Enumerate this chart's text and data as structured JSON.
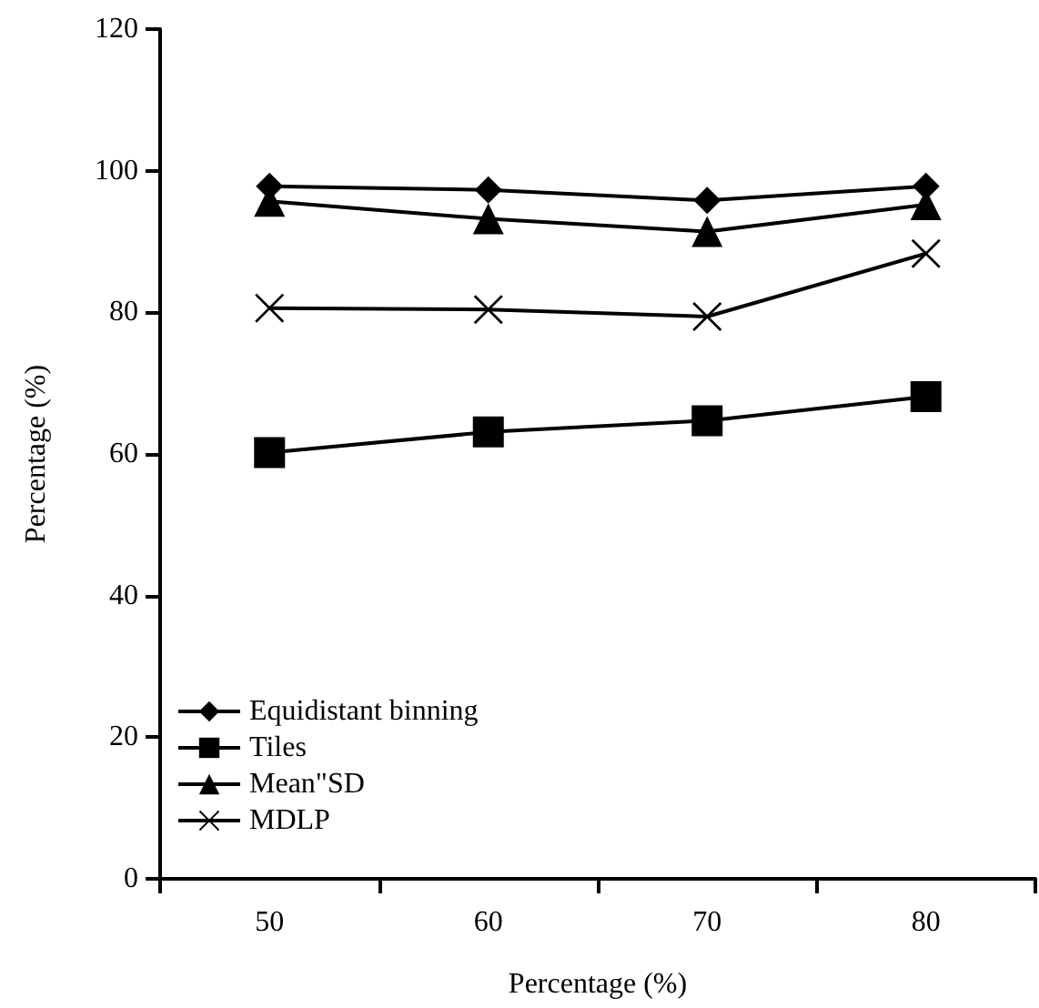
{
  "chart_data": {
    "type": "line",
    "xlabel": "Percentage (%)",
    "ylabel": "Percentage (%)",
    "categories": [
      "50",
      "60",
      "70",
      "80"
    ],
    "ylim": [
      0,
      120
    ],
    "yticks": [
      0,
      20,
      40,
      60,
      80,
      100,
      120
    ],
    "grid": false,
    "legend": "bottom left",
    "series": [
      {
        "name": "Equidistant binning",
        "color": "#000000",
        "marker": "diamond",
        "values": [
          97.8,
          97.3,
          95.8,
          97.8
        ]
      },
      {
        "name": "Tiles",
        "color": "#000000",
        "marker": "square",
        "values": [
          60.2,
          63.1,
          64.7,
          68.1
        ]
      },
      {
        "name": "Mean\"SD",
        "color": "#000000",
        "marker": "triangle",
        "values": [
          95.7,
          93.2,
          91.4,
          95.2
        ]
      },
      {
        "name": "MDLP",
        "color": "#000000",
        "marker": "cross",
        "values": [
          80.6,
          80.4,
          79.4,
          88.3
        ]
      }
    ]
  }
}
